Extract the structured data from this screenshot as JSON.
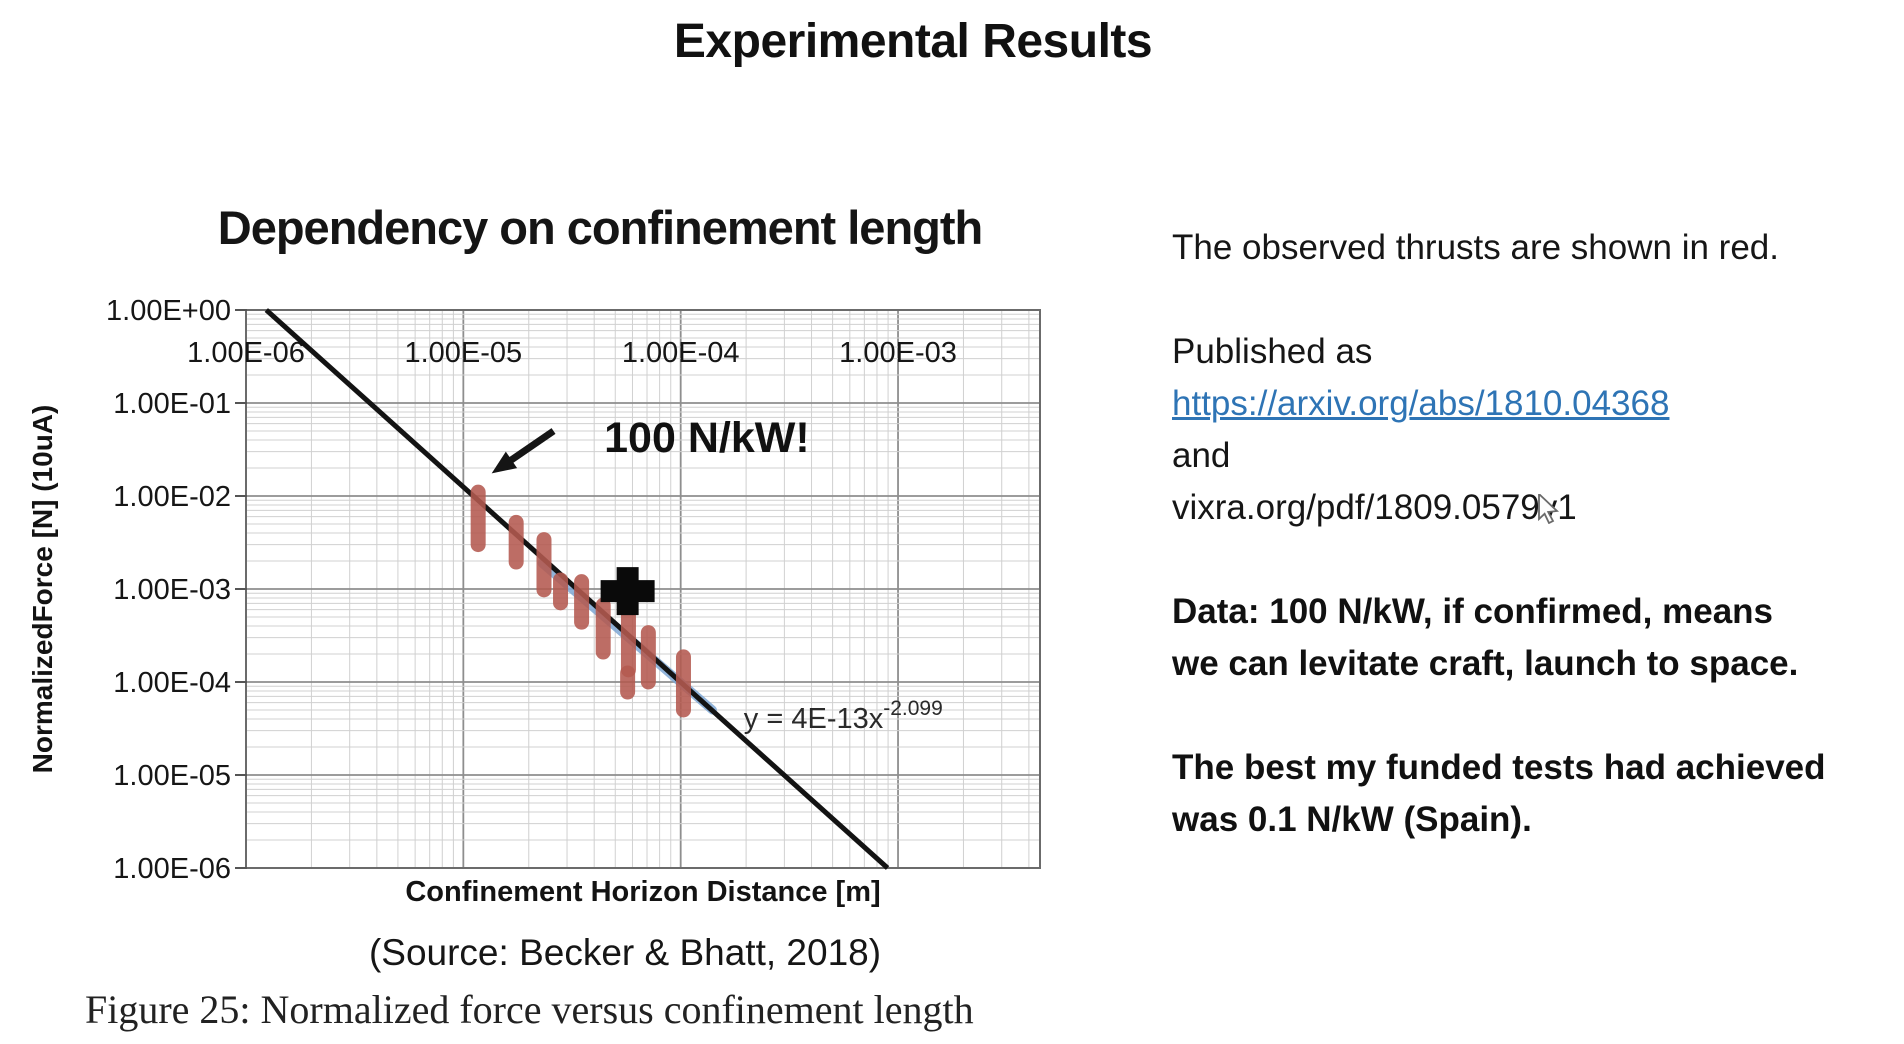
{
  "slide": {
    "title": "Experimental Results"
  },
  "chart": {
    "title": "Dependency on confinement length"
  },
  "caption": {
    "source": "(Source: Becker & Bhatt, 2018)",
    "figure": "Figure 25: Normalized force versus confinement length"
  },
  "sidebar": {
    "lines": [
      {
        "text": "The observed thrusts are shown in red.",
        "style": "regular"
      },
      {
        "text": "",
        "style": "blank"
      },
      {
        "text": "Published as",
        "style": "regular"
      },
      {
        "text": "https://arxiv.org/abs/1810.04368",
        "style": "link"
      },
      {
        "text": "and",
        "style": "regular"
      },
      {
        "text": "vixra.org/pdf/1809.0579v1",
        "style": "regular"
      },
      {
        "text": "",
        "style": "blank"
      },
      {
        "text": "Data: 100 N/kW, if confirmed, means",
        "style": "bold"
      },
      {
        "text": "we can levitate craft, launch to space.",
        "style": "bold"
      },
      {
        "text": "",
        "style": "blank"
      },
      {
        "text": "The best my funded tests had achieved",
        "style": "bold"
      },
      {
        "text": "was 0.1 N/kW (Spain).",
        "style": "bold"
      }
    ]
  },
  "chart_data": {
    "type": "scatter",
    "title": "Dependency on confinement length",
    "xlabel": "Confinement Horizon Distance [m]",
    "ylabel": "NormalizedForce [N] (10uA)",
    "x_scale": "log",
    "y_scale": "log",
    "xlim": [
      1e-06,
      0.0045
    ],
    "ylim": [
      1e-06,
      1
    ],
    "grid": "major+minor",
    "x_ticks": [
      {
        "value": 1e-06,
        "label": "1.00E-06"
      },
      {
        "value": 1e-05,
        "label": "1.00E-05"
      },
      {
        "value": 0.0001,
        "label": "1.00E-04"
      },
      {
        "value": 0.001,
        "label": "1.00E-03"
      }
    ],
    "y_ticks": [
      {
        "value": 1,
        "label": "1.00E+00"
      },
      {
        "value": 0.1,
        "label": "1.00E-01"
      },
      {
        "value": 0.01,
        "label": "1.00E-02"
      },
      {
        "value": 0.001,
        "label": "1.00E-03"
      },
      {
        "value": 0.0001,
        "label": "1.00E-04"
      },
      {
        "value": 1e-05,
        "label": "1.00E-05"
      },
      {
        "value": 1e-06,
        "label": "1.00E-06"
      }
    ],
    "points_red": [
      {
        "x": 1.17e-05,
        "y_low": 0.003,
        "y_high": 0.011
      },
      {
        "x": 1.75e-05,
        "y_low": 0.00195,
        "y_high": 0.0052
      },
      {
        "x": 2.35e-05,
        "y_low": 0.00098,
        "y_high": 0.0034
      },
      {
        "x": 2.8e-05,
        "y_low": 0.00071,
        "y_high": 0.00125
      },
      {
        "x": 3.5e-05,
        "y_low": 0.00044,
        "y_high": 0.0012
      },
      {
        "x": 4.4e-05,
        "y_low": 0.00021,
        "y_high": 0.00067
      },
      {
        "x": 5.75e-05,
        "y_low": 0.000135,
        "y_high": 0.00052
      },
      {
        "x": 7.1e-05,
        "y_low": 0.0001,
        "y_high": 0.00034
      },
      {
        "x": 5.7e-05,
        "y_low": 7.8e-05,
        "y_high": 0.000125
      },
      {
        "x": 0.000103,
        "y_low": 5e-05,
        "y_high": 0.000186
      }
    ],
    "marker_black_cross": {
      "x": 5.7e-05,
      "y": 0.00095
    },
    "fit_segment_blue": {
      "x1": 2.3e-05,
      "y1": 0.0019,
      "x2": 0.00014,
      "y2": 5e-05
    },
    "trend": {
      "coefficient": 4e-13,
      "exponent": -2.099,
      "label_base": "y = 4E-13x",
      "label_exp": "-2.099",
      "label_at": {
        "x": 0.00056,
        "y": 4.1e-05
      }
    },
    "annotation": {
      "text": "100 N/kW!",
      "text_at": {
        "x": 0.000132,
        "y": 0.043
      },
      "arrow_from": {
        "x": 2.6e-05,
        "y": 0.05
      },
      "arrow_to": {
        "x": 1.35e-05,
        "y": 0.0175
      }
    },
    "colors": {
      "points_red": "#b45a50",
      "fit_blue": "#7fa8d4",
      "trend_black": "#131313",
      "grid_major": "#8e8e8e",
      "grid_minor": "#d0d0d0",
      "box": "#6b6b6b",
      "link_blue": "#2e74b5"
    }
  }
}
